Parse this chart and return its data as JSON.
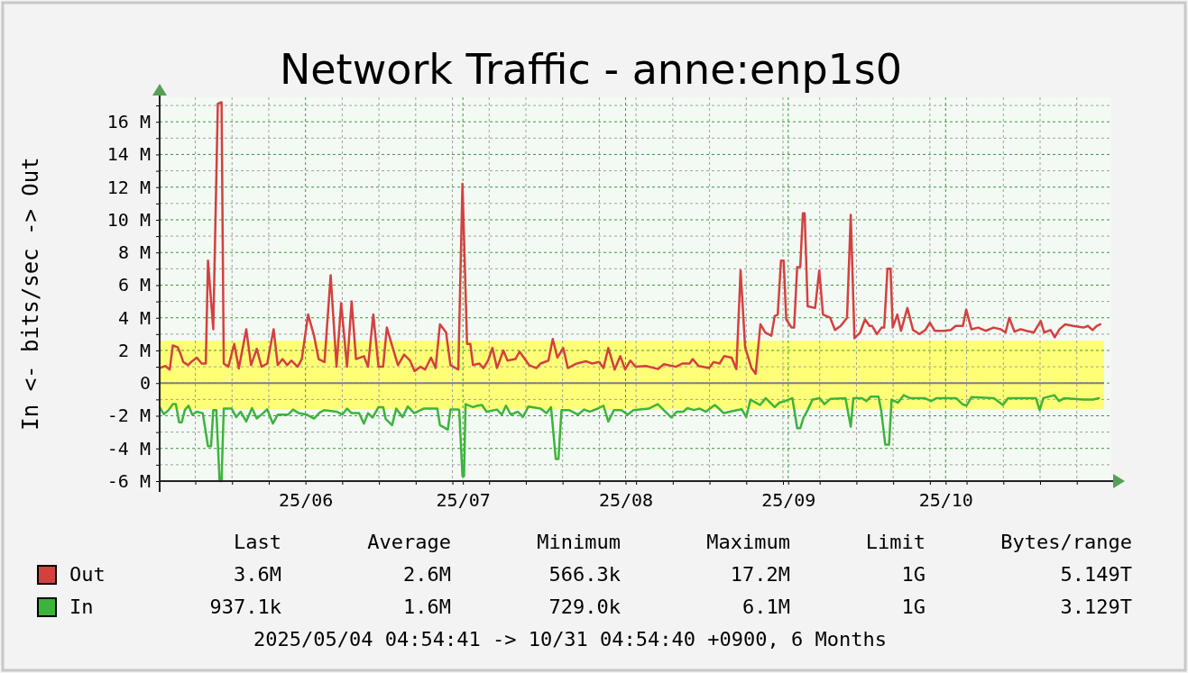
{
  "chart_data": {
    "type": "line",
    "title": "Network Traffic - anne:enp1s0",
    "ylabel": "In <- bits/sec -> Out",
    "xlim": [
      "2025-05-04T04:54",
      "2025-10-31T04:54"
    ],
    "xticks": [
      {
        "value": "2025-05-11",
        "label": null
      },
      {
        "value": "2025-05-18",
        "label": null
      },
      {
        "value": "2025-05-25",
        "label": null
      },
      {
        "value": "2025-06-01",
        "label": "25/06"
      },
      {
        "value": "2025-06-08",
        "label": null
      },
      {
        "value": "2025-06-15",
        "label": null
      },
      {
        "value": "2025-06-22",
        "label": null
      },
      {
        "value": "2025-06-29",
        "label": null
      },
      {
        "value": "2025-07-01",
        "label": "25/07"
      },
      {
        "value": "2025-07-06",
        "label": null
      },
      {
        "value": "2025-07-13",
        "label": null
      },
      {
        "value": "2025-07-20",
        "label": null
      },
      {
        "value": "2025-07-27",
        "label": null
      },
      {
        "value": "2025-08-01",
        "label": "25/08"
      },
      {
        "value": "2025-08-03",
        "label": null
      },
      {
        "value": "2025-08-10",
        "label": null
      },
      {
        "value": "2025-08-17",
        "label": null
      },
      {
        "value": "2025-08-24",
        "label": null
      },
      {
        "value": "2025-08-31",
        "label": null
      },
      {
        "value": "2025-09-01",
        "label": "25/09"
      },
      {
        "value": "2025-09-07",
        "label": null
      },
      {
        "value": "2025-09-14",
        "label": null
      },
      {
        "value": "2025-09-21",
        "label": null
      },
      {
        "value": "2025-09-28",
        "label": null
      },
      {
        "value": "2025-10-01",
        "label": "25/10"
      },
      {
        "value": "2025-10-05",
        "label": null
      },
      {
        "value": "2025-10-12",
        "label": null
      },
      {
        "value": "2025-10-19",
        "label": null
      },
      {
        "value": "2025-10-26",
        "label": null
      }
    ],
    "ylim": [
      -6,
      17.5
    ],
    "yticks": [
      {
        "value": -6,
        "label": "-6 M"
      },
      {
        "value": -5,
        "label": null
      },
      {
        "value": -4,
        "label": "-4 M"
      },
      {
        "value": -3,
        "label": null
      },
      {
        "value": -2,
        "label": "-2 M"
      },
      {
        "value": -1,
        "label": null
      },
      0,
      {
        "value": 1,
        "label": null
      },
      {
        "value": 2,
        "label": "2 M"
      },
      {
        "value": 3,
        "label": null
      },
      {
        "value": 4,
        "label": "4 M"
      },
      {
        "value": 5,
        "label": null
      },
      {
        "value": 6,
        "label": "6 M"
      },
      {
        "value": 7,
        "label": null
      },
      {
        "value": 8,
        "label": "8 M"
      },
      {
        "value": 9,
        "label": null
      },
      {
        "value": 10,
        "label": "10 M"
      },
      {
        "value": 11,
        "label": null
      },
      {
        "value": 12,
        "label": "12 M"
      },
      {
        "value": 13,
        "label": null
      },
      {
        "value": 14,
        "label": "14 M"
      },
      {
        "value": 15,
        "label": null
      },
      {
        "value": 16,
        "label": "16 M"
      },
      {
        "value": 17,
        "label": null
      }
    ],
    "grid": true,
    "legend": "bottom",
    "line_style": "solid",
    "marker": "none",
    "bands": [
      {
        "axis": "y",
        "from": 0,
        "to": 2.6,
        "color": "#ffff77"
      },
      {
        "axis": "y",
        "from": -1.6,
        "to": 0,
        "color": "#ffff77"
      }
    ],
    "ref_lines": [
      {
        "axis": "y",
        "value": 0,
        "color": "#808080"
      }
    ],
    "annotations": [
      "Last",
      "Average",
      "Minimum",
      "Maximum",
      "Limit",
      "Bytes/range",
      "3.6M",
      "2.6M",
      "566.3k",
      "17.2M",
      "1G",
      "5.149T",
      "937.1k",
      "1.6M",
      "729.0k",
      "6.1M",
      "1G",
      "3.129T",
      "2025/05/04 04:54:41 -> 10/31 04:54:40 +0900, 6 Months"
    ],
    "series": [
      {
        "name": "Out",
        "color": "#d44040",
        "x": [
          "2025-05-04T05:00",
          "2025-05-05T07:00",
          "2025-05-06T03:00",
          "2025-05-06T17:00",
          "2025-05-07T15:00",
          "2025-05-08T03:00",
          "2025-05-08T17:00",
          "2025-05-09T15:00",
          "2025-05-10T05:00",
          "2025-05-11T07:00",
          "2025-05-12T05:00",
          "2025-05-13T00:00",
          "2025-05-13T10:00",
          "2025-05-14T10:00",
          "2025-05-15T07:00",
          "2025-05-16T00:00",
          "2025-05-16T10:00",
          "2025-05-17T07:00",
          "2025-05-18T10:00",
          "2025-05-19T07:00",
          "2025-05-20T17:00",
          "2025-05-21T15:00",
          "2025-05-22T17:00",
          "2025-05-23T15:00",
          "2025-05-24T17:00",
          "2025-05-25T22:00",
          "2025-05-26T17:00",
          "2025-05-27T15:00",
          "2025-05-28T12:00",
          "2025-05-29T07:00",
          "2025-05-30T12:00",
          "2025-05-31T07:00",
          "2025-06-01T12:00",
          "2025-06-02T15:00",
          "2025-06-03T12:00",
          "2025-06-04T15:00",
          "2025-06-05T19:00",
          "2025-06-06T22:00",
          "2025-06-07T19:00",
          "2025-06-08T22:00",
          "2025-06-09T19:00",
          "2025-06-10T15:00",
          "2025-06-12T03:00",
          "2025-06-12T22:00",
          "2025-06-13T22:00",
          "2025-06-14T22:00",
          "2025-06-15T19:00",
          "2025-06-16T12:00",
          "2025-06-17T12:00",
          "2025-06-18T15:00",
          "2025-06-19T19:00",
          "2025-06-20T22:00",
          "2025-06-21T19:00",
          "2025-06-22T22:00",
          "2025-06-23T19:00",
          "2025-06-24T22:00",
          "2025-06-25T19:00",
          "2025-06-26T15:00",
          "2025-06-27T19:00",
          "2025-06-28T15:00",
          "2025-06-30T03:00",
          "2025-06-30T22:00",
          "2025-07-01T19:00",
          "2025-07-02T10:00",
          "2025-07-02T22:00",
          "2025-07-04T03:00",
          "2025-07-04T22:00",
          "2025-07-05T19:00",
          "2025-07-06T15:00",
          "2025-07-07T12:00",
          "2025-07-08T17:00",
          "2025-07-09T12:00",
          "2025-07-11T00:00",
          "2025-07-11T19:00",
          "2025-07-13T15:00",
          "2025-07-15T00:00",
          "2025-07-15T19:00",
          "2025-07-17T07:00",
          "2025-07-18T03:00",
          "2025-07-19T00:00",
          "2025-07-20T03:00",
          "2025-07-21T00:00",
          "2025-07-22T17:00",
          "2025-07-24T10:00",
          "2025-07-25T15:00",
          "2025-07-27T00:00",
          "2025-07-27T19:00",
          "2025-07-28T17:00",
          "2025-07-29T22:00",
          "2025-07-31T00:00",
          "2025-07-31T22:00",
          "2025-08-01T22:00",
          "2025-08-02T22:00",
          "2025-08-04T22:00",
          "2025-08-07T05:00",
          "2025-08-08T07:00",
          "2025-08-10T15:00",
          "2025-08-11T19:00",
          "2025-08-13T05:00",
          "2025-08-13T19:00",
          "2025-08-14T22:00",
          "2025-08-16T22:00",
          "2025-08-17T19:00",
          "2025-08-18T22:00",
          "2025-08-19T19:00",
          "2025-08-21T05:00",
          "2025-08-22T03:00",
          "2025-08-22T22:00",
          "2025-08-23T19:00",
          "2025-08-25T00:00",
          "2025-08-25T19:00",
          "2025-08-26T17:00",
          "2025-08-27T15:00",
          "2025-08-28T19:00",
          "2025-08-29T10:00",
          "2025-08-30T00:00",
          "2025-08-30T15:00",
          "2025-08-31T03:00",
          "2025-08-31T15:00",
          "2025-09-01T15:00",
          "2025-09-02T03:00",
          "2025-09-02T17:00",
          "2025-09-03T07:00",
          "2025-09-03T19:00",
          "2025-09-04T03:00",
          "2025-09-04T17:00",
          "2025-09-06T03:00",
          "2025-09-06T22:00",
          "2025-09-07T15:00",
          "2025-09-09T00:00",
          "2025-09-09T22:00",
          "2025-09-11T00:00",
          "2025-09-12T05:00",
          "2025-09-12T22:00",
          "2025-09-13T15:00",
          "2025-09-14T17:00",
          "2025-09-15T15:00",
          "2025-09-16T12:00",
          "2025-09-17T00:00",
          "2025-09-17T22:00",
          "2025-09-18T19:00",
          "2025-09-19T07:00",
          "2025-09-19T22:00",
          "2025-09-20T12:00",
          "2025-09-20T22:00",
          "2025-09-21T19:00",
          "2025-09-22T12:00",
          "2025-09-23T17:00",
          "2025-09-24T19:00",
          "2025-09-26T00:00",
          "2025-09-27T03:00",
          "2025-09-28T00:00",
          "2025-09-28T22:00",
          "2025-09-30T15:00",
          "2025-10-02T00:00",
          "2025-10-02T22:00",
          "2025-10-04T07:00",
          "2025-10-04T22:00",
          "2025-10-05T22:00",
          "2025-10-07T05:00",
          "2025-10-08T15:00",
          "2025-10-10T03:00",
          "2025-10-11T12:00",
          "2025-10-12T10:00",
          "2025-10-13T03:00",
          "2025-10-14T03:00",
          "2025-10-15T07:00",
          "2025-10-16T10:00",
          "2025-10-17T19:00",
          "2025-10-19T03:00",
          "2025-10-19T19:00",
          "2025-10-21T00:00",
          "2025-10-21T19:00",
          "2025-10-22T17:00",
          "2025-10-23T19:00",
          "2025-10-25T07:00",
          "2025-10-27T07:00",
          "2025-10-28T03:00",
          "2025-10-29T00:00",
          "2025-10-29T19:00",
          "2025-10-30T12:00"
        ],
        "values": [
          0.92,
          1.05,
          0.83,
          2.3,
          2.2,
          1.84,
          1.29,
          1.1,
          1.29,
          1.56,
          1.2,
          1.2,
          7.5,
          3.3,
          17.1,
          17.2,
          1.2,
          1.0,
          2.4,
          0.9,
          3.3,
          1.1,
          2.1,
          1.0,
          1.2,
          3.3,
          1.1,
          1.47,
          1.1,
          1.38,
          1.0,
          1.47,
          4.2,
          2.9,
          1.47,
          1.29,
          6.6,
          1.0,
          4.9,
          1.0,
          5.0,
          1.47,
          1.65,
          1.0,
          4.2,
          1.0,
          1.0,
          3.4,
          2.3,
          1.1,
          1.75,
          1.38,
          0.73,
          1.0,
          0.83,
          1.56,
          0.92,
          3.6,
          3.1,
          1.1,
          0.83,
          12.2,
          2.4,
          2.4,
          1.1,
          1.2,
          0.92,
          1.38,
          2.15,
          0.92,
          2.0,
          1.38,
          1.47,
          1.93,
          1.1,
          0.92,
          1.2,
          1.38,
          2.7,
          1.56,
          2.15,
          0.92,
          1.2,
          1.34,
          1.2,
          1.29,
          0.92,
          2.15,
          0.83,
          1.65,
          0.83,
          1.38,
          1.0,
          1.05,
          0.86,
          1.16,
          1.0,
          1.2,
          1.2,
          1.47,
          1.05,
          0.92,
          1.29,
          1.2,
          1.65,
          1.56,
          0.86,
          6.9,
          2.2,
          0.92,
          0.57,
          3.6,
          3.1,
          2.9,
          4.1,
          4.2,
          7.5,
          7.5,
          3.9,
          3.4,
          3.4,
          7.1,
          7.1,
          10.4,
          10.4,
          4.7,
          4.6,
          6.9,
          4.2,
          4.0,
          3.25,
          3.5,
          4.0,
          10.3,
          2.75,
          3.1,
          3.9,
          3.5,
          3.5,
          3.0,
          3.4,
          3.4,
          7.0,
          7.0,
          3.4,
          4.2,
          3.2,
          4.6,
          3.25,
          3.0,
          3.25,
          3.7,
          3.2,
          3.2,
          3.25,
          3.5,
          3.5,
          4.5,
          3.3,
          3.4,
          3.2,
          3.4,
          3.3,
          3.1,
          4.0,
          3.15,
          3.3,
          3.2,
          3.1,
          3.8,
          3.1,
          3.25,
          2.8,
          3.3,
          3.6,
          3.5,
          3.4,
          3.5,
          3.25,
          3.5,
          3.6
        ]
      },
      {
        "name": "In",
        "color": "#3cb43c",
        "x": [
          "2025-05-04T05:00",
          "2025-05-05T00:00",
          "2025-05-05T22:00",
          "2025-05-06T17:00",
          "2025-05-07T07:00",
          "2025-05-07T22:00",
          "2025-05-08T10:00",
          "2025-05-09T00:00",
          "2025-05-09T17:00",
          "2025-05-10T10:00",
          "2025-05-11T07:00",
          "2025-05-12T10:00",
          "2025-05-13T10:00",
          "2025-05-14T00:00",
          "2025-05-14T10:00",
          "2025-05-15T00:00",
          "2025-05-15T15:00",
          "2025-05-16T00:00",
          "2025-05-16T10:00",
          "2025-05-17T22:00",
          "2025-05-18T19:00",
          "2025-05-19T15:00",
          "2025-05-20T17:00",
          "2025-05-21T19:00",
          "2025-05-22T17:00",
          "2025-05-23T22:00",
          "2025-05-24T17:00",
          "2025-05-25T19:00",
          "2025-05-26T17:00",
          "2025-05-28T17:00",
          "2025-05-29T15:00",
          "2025-05-30T17:00",
          "2025-06-01T05:00",
          "2025-06-02T15:00",
          "2025-06-03T17:00",
          "2025-06-04T15:00",
          "2025-06-06T22:00",
          "2025-06-08T00:00",
          "2025-06-08T22:00",
          "2025-06-09T19:00",
          "2025-06-11T05:00",
          "2025-06-12T03:00",
          "2025-06-12T22:00",
          "2025-06-13T19:00",
          "2025-06-14T22:00",
          "2025-06-15T19:00",
          "2025-06-16T07:00",
          "2025-06-17T12:00",
          "2025-06-18T07:00",
          "2025-06-19T12:00",
          "2025-06-20T12:00",
          "2025-06-21T17:00",
          "2025-06-23T12:00",
          "2025-06-26T03:00",
          "2025-06-26T15:00",
          "2025-06-28T03:00",
          "2025-06-28T15:00",
          "2025-06-30T03:00",
          "2025-06-30T07:00",
          "2025-06-30T22:00",
          "2025-07-01T05:00",
          "2025-07-01T12:00",
          "2025-07-02T22:00",
          "2025-07-03T19:00",
          "2025-07-04T15:00",
          "2025-07-05T12:00",
          "2025-07-07T12:00",
          "2025-07-08T10:00",
          "2025-07-09T05:00",
          "2025-07-10T03:00",
          "2025-07-11T12:00",
          "2025-07-12T10:00",
          "2025-07-13T12:00",
          "2025-07-15T19:00",
          "2025-07-16T22:00",
          "2025-07-17T19:00",
          "2025-07-18T17:00",
          "2025-07-19T05:00",
          "2025-07-19T19:00",
          "2025-07-21T05:00",
          "2025-07-22T22:00",
          "2025-07-24T03:00",
          "2025-07-25T05:00",
          "2025-07-26T17:00",
          "2025-07-27T19:00",
          "2025-07-28T17:00",
          "2025-07-29T19:00",
          "2025-07-31T05:00",
          "2025-08-01T10:00",
          "2025-08-02T12:00",
          "2025-08-05T10:00",
          "2025-08-07T03:00",
          "2025-08-07T17:00",
          "2025-08-09T17:00",
          "2025-08-10T19:00",
          "2025-08-12T00:00",
          "2025-08-12T19:00",
          "2025-08-14T00:00",
          "2025-08-15T03:00",
          "2025-08-16T07:00",
          "2025-08-18T00:00",
          "2025-08-18T19:00",
          "2025-08-19T17:00",
          "2025-08-21T10:00",
          "2025-08-23T03:00",
          "2025-08-24T00:00",
          "2025-08-24T19:00",
          "2025-08-26T15:00",
          "2025-08-27T17:00",
          "2025-08-29T10:00",
          "2025-08-30T07:00",
          "2025-08-31T10:00",
          "2025-09-01T19:00",
          "2025-09-02T17:00",
          "2025-09-03T07:00",
          "2025-09-03T22:00",
          "2025-09-04T17:00",
          "2025-09-05T15:00",
          "2025-09-07T00:00",
          "2025-09-07T22:00",
          "2025-09-09T00:00",
          "2025-09-11T22:00",
          "2025-09-12T22:00",
          "2025-09-13T10:00",
          "2025-09-15T00:00",
          "2025-09-15T22:00",
          "2025-09-16T17:00",
          "2025-09-18T05:00",
          "2025-09-18T17:00",
          "2025-09-19T12:00",
          "2025-09-20T05:00",
          "2025-09-20T17:00",
          "2025-09-21T22:00",
          "2025-09-23T00:00",
          "2025-09-24T05:00",
          "2025-09-27T00:00",
          "2025-09-28T05:00",
          "2025-09-29T07:00",
          "2025-10-03T00:00",
          "2025-10-04T05:00",
          "2025-10-05T00:00",
          "2025-10-05T22:00",
          "2025-10-10T05:00",
          "2025-10-11T22:00",
          "2025-10-12T22:00",
          "2025-10-18T05:00",
          "2025-10-18T22:00",
          "2025-10-19T15:00",
          "2025-10-21T17:00",
          "2025-10-22T15:00",
          "2025-10-23T15:00",
          "2025-10-27T07:00",
          "2025-10-29T03:00",
          "2025-10-30T05:00"
        ],
        "values": [
          -1.47,
          -1.9,
          -1.65,
          -1.29,
          -1.29,
          -2.4,
          -2.4,
          -1.65,
          -1.38,
          -1.93,
          -1.75,
          -1.84,
          -3.86,
          -3.86,
          -1.65,
          -1.65,
          -6.0,
          -6.0,
          -1.56,
          -1.56,
          -2.08,
          -1.75,
          -2.35,
          -1.53,
          -2.17,
          -1.84,
          -1.6,
          -2.48,
          -1.93,
          -1.93,
          -1.62,
          -1.84,
          -1.93,
          -2.17,
          -1.8,
          -1.65,
          -1.75,
          -1.93,
          -1.56,
          -1.84,
          -1.84,
          -2.48,
          -1.84,
          -2.11,
          -1.47,
          -1.47,
          -2.2,
          -2.57,
          -1.56,
          -2.08,
          -1.43,
          -1.84,
          -1.56,
          -1.56,
          -2.57,
          -2.85,
          -1.62,
          -1.62,
          -1.65,
          -5.7,
          -5.7,
          -1.29,
          -1.47,
          -1.38,
          -1.34,
          -1.75,
          -1.62,
          -1.93,
          -1.38,
          -1.93,
          -1.75,
          -2.08,
          -1.43,
          -1.56,
          -1.84,
          -1.47,
          -4.65,
          -4.65,
          -1.65,
          -1.65,
          -1.93,
          -1.62,
          -1.75,
          -1.56,
          -1.38,
          -2.35,
          -1.65,
          -1.65,
          -1.93,
          -1.65,
          -1.56,
          -1.29,
          -1.47,
          -2.11,
          -1.75,
          -1.75,
          -1.53,
          -1.65,
          -1.56,
          -1.75,
          -1.34,
          -1.56,
          -1.84,
          -1.71,
          -1.6,
          -2.08,
          -1.01,
          -1.34,
          -0.92,
          -1.47,
          -1.2,
          -1.1,
          -0.92,
          -2.76,
          -2.76,
          -2.11,
          -1.65,
          -1.01,
          -0.92,
          -1.29,
          -0.97,
          -0.92,
          -2.67,
          -0.92,
          -0.92,
          -1.1,
          -0.83,
          -0.83,
          -1.65,
          -3.77,
          -3.77,
          -1.01,
          -1.2,
          -0.74,
          -0.92,
          -0.92,
          -1.1,
          -0.92,
          -0.92,
          -1.29,
          -1.38,
          -0.86,
          -0.92,
          -1.34,
          -0.92,
          -0.92,
          -1.65,
          -0.92,
          -0.74,
          -1.1,
          -0.92,
          -1.01,
          -1.01,
          -0.92
        ]
      }
    ]
  }
}
